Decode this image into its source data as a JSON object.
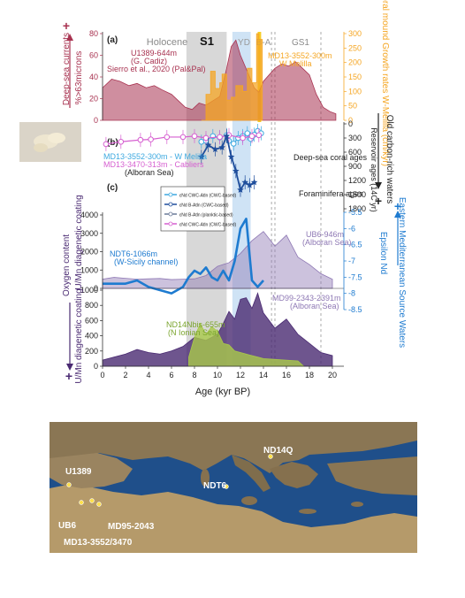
{
  "chart_data": {
    "type": "area",
    "x_axis": {
      "label": "Age (kyr BP)",
      "range": [
        0,
        21
      ],
      "ticks": [
        "0",
        "2",
        "4",
        "6",
        "8",
        "10",
        "12",
        "14",
        "16",
        "18",
        "20"
      ]
    },
    "periods": [
      {
        "name": "Holocene",
        "color": "#8a8a8a"
      },
      {
        "name": "S1",
        "color": "#111111"
      },
      {
        "name": "YD",
        "color": "#9a9a9a"
      },
      {
        "name": "B-A",
        "color": "#9a9a9a"
      },
      {
        "name": "GS1",
        "color": "#8a8a8a"
      }
    ],
    "shading": {
      "s1": {
        "from": 7.3,
        "to": 10.8,
        "color": "#d8d8d8"
      },
      "yd": {
        "from": 11.3,
        "to": 12.9,
        "color": "#cfe3f5"
      },
      "ba": {
        "from": 12.9,
        "to": 14.7,
        "color": "#ffffff"
      },
      "coral_band": {
        "from": 13.5,
        "to": 13.8,
        "color": "#f5c400"
      }
    },
    "dashed_lines": [
      14.7,
      15.0,
      19.0
    ],
    "panel_a": {
      "label": "(a)",
      "left_axis": {
        "label": "%>63microns",
        "range": [
          0,
          80
        ],
        "ticks": [
          "0",
          "20",
          "40",
          "60",
          "80"
        ],
        "side_label": "Deep-sea currents",
        "plus_sign": "+"
      },
      "right_axis": {
        "label": "Coral mound Growth rates W-Melilla (cm/kyr)",
        "range": [
          0,
          300
        ],
        "ticks": [
          "0",
          "50",
          "100",
          "150",
          "200",
          "250",
          "300"
        ]
      },
      "series": [
        {
          "name": "U1389-644m (G. Cadiz) Sierro et al., 2020 (Pal&Pal)",
          "color": "#a83250",
          "x": [
            0,
            0.8,
            1.5,
            2.3,
            3.0,
            3.8,
            4.5,
            5.2,
            6.0,
            6.6,
            7.2,
            7.8,
            8.4,
            9.0,
            9.6,
            10.2,
            10.8,
            11.2,
            11.6,
            12.0,
            12.4,
            12.8,
            13.2,
            13.6,
            14.0,
            14.5,
            15.0,
            15.6,
            16.2,
            16.8,
            17.4,
            18.0,
            18.6,
            19.2,
            19.8,
            20.3
          ],
          "y": [
            30,
            38,
            36,
            32,
            34,
            30,
            32,
            28,
            24,
            18,
            12,
            10,
            16,
            14,
            18,
            22,
            48,
            68,
            74,
            60,
            50,
            40,
            30,
            26,
            36,
            42,
            48,
            52,
            50,
            54,
            48,
            42,
            24,
            12,
            8,
            6
          ]
        },
        {
          "name": "MD13-3552-300m W Melilla",
          "color": "#f5a623",
          "x": [
            8.6,
            9.0,
            9.2,
            9.4,
            9.8,
            10.2,
            10.4,
            10.8,
            11.2,
            11.6,
            12.2,
            12.6,
            13.0,
            13.4,
            13.6,
            13.9
          ],
          "y": [
            0,
            90,
            90,
            170,
            110,
            130,
            160,
            70,
            80,
            120,
            100,
            180,
            130,
            300,
            280,
            0
          ]
        }
      ],
      "annotations": [
        "U1389-644m",
        "(G. Cadiz)",
        "Sierro et al., 2020 (Pal&Pal)",
        "MD13-3552-300m",
        "W Melilla"
      ]
    },
    "panel_b": {
      "label": "(b)",
      "right_axis": {
        "label": "Reservoir ages (14C yr)",
        "range": [
          0,
          1800
        ],
        "ticks": [
          "0",
          "300",
          "600",
          "900",
          "1200",
          "1500",
          "1800"
        ],
        "side_label": "Old carbon-rich waters",
        "plus_sign": "+"
      },
      "series": [
        {
          "name": "MD13-3552-300m - W Melilla",
          "color": "#3da9e0",
          "marker": "open-circle",
          "x": [
            8.6,
            9.0,
            9.6,
            10.2,
            10.8,
            11.0,
            11.4,
            11.8,
            12.2,
            12.6,
            12.9,
            13.2,
            13.5,
            13.8
          ],
          "y": [
            380,
            360,
            260,
            290,
            240,
            360,
            420,
            300,
            260,
            200,
            320,
            230,
            150,
            200
          ]
        },
        {
          "name": "MD13-3470-313m - Cabliers (Alboran Sea)",
          "color": "#d65fd0",
          "marker": "open-circle",
          "x": [
            0.3,
            1.6,
            3.3,
            4.2,
            5.6,
            7.0,
            8.0,
            9.0,
            10.2,
            11.0,
            12.2,
            13.0,
            13.6
          ],
          "y": [
            430,
            380,
            340,
            330,
            280,
            280,
            260,
            300,
            280,
            240,
            300,
            260,
            240
          ]
        },
        {
          "name": "Foraminifera ages",
          "color": "#1f4e9c",
          "marker": "star",
          "x": [
            8.6,
            9.2,
            9.8,
            10.4,
            10.8,
            11.2,
            11.6,
            12.0,
            12.4,
            12.8,
            13.2
          ],
          "y": [
            700,
            450,
            540,
            500,
            260,
            700,
            1000,
            1400,
            1240,
            1300,
            1240
          ]
        }
      ],
      "annotations": [
        "Deep-sea coral ages",
        "Foraminifera ages",
        "MD13-3552-300m - W Melilla",
        "MD13-3470-313m - Cabliers",
        "(Alboran Sea)"
      ]
    },
    "panel_c": {
      "label": "(c)",
      "left_axis_upper": {
        "label": "U/Mn diagenetic coating",
        "range": [
          0,
          4000
        ],
        "ticks": [
          "0",
          "1000",
          "2000",
          "3000",
          "4000"
        ]
      },
      "left_axis_lower": {
        "label": "U/Mn diagenetic coating",
        "range": [
          0,
          1000
        ],
        "ticks": [
          "0",
          "200",
          "400",
          "600",
          "800",
          "1000"
        ]
      },
      "side_label": "Oxygen content",
      "plus_sign": "+",
      "right_axis": {
        "label": "Epsilon Nd",
        "range": [
          -8.5,
          -5.5
        ],
        "ticks": [
          "-5.5",
          "-6",
          "-6.5",
          "-7",
          "-7.5",
          "-8",
          "-8.5"
        ],
        "side_label": "Eastern Mediterranean Source Waters",
        "plus_sign": "+"
      },
      "legend": [
        {
          "label": "εNd CWC-Atln (CWC-based)",
          "color": "#3da9e0"
        },
        {
          "label": "εNd B-Atln (CWC-based)",
          "color": "#1f4e9c"
        },
        {
          "label": "εNd B-Atln (planktic-based)",
          "color": "#6b7a99"
        },
        {
          "label": "εNd CWC-Atln (CWC-based)",
          "color": "#d65fd0"
        }
      ],
      "series": [
        {
          "name": "UB6-946m (Alboran Sea)",
          "color": "#8e78b4",
          "x": [
            0,
            1,
            2,
            3,
            4,
            5,
            6,
            7,
            8,
            9,
            10,
            11,
            12,
            13,
            14,
            15,
            16,
            17,
            18,
            19,
            20
          ],
          "y": [
            500,
            600,
            550,
            500,
            520,
            540,
            480,
            500,
            520,
            700,
            1200,
            1400,
            1900,
            2600,
            3100,
            2300,
            2900,
            1700,
            1300,
            800,
            500
          ]
        },
        {
          "name": "NDT6-1066m (W-Sicily channel)",
          "color": "#1e7bd0",
          "x": [
            0,
            1,
            2,
            3,
            4,
            5,
            6,
            7,
            7.5,
            8,
            8.5,
            9,
            9.5,
            10,
            10.5,
            11,
            11.5,
            12,
            12.5,
            13,
            13.5,
            14
          ],
          "y": [
            -7.7,
            -7.7,
            -7.7,
            -7.6,
            -7.8,
            -7.9,
            -8.0,
            -7.8,
            -7.5,
            -7.3,
            -7.4,
            -7.2,
            -7.5,
            -7.6,
            -7.3,
            -7.6,
            -7.0,
            -6.0,
            -5.7,
            -7.6,
            -7.8,
            -7.6
          ]
        },
        {
          "name": "MD99-2343-2391m (Alboran Sea)",
          "color": "#4a2a72",
          "x": [
            0,
            1,
            2,
            3,
            4,
            5,
            6,
            7,
            8,
            9,
            10,
            10.5,
            11,
            11.5,
            12,
            12.5,
            13,
            13.5,
            14,
            15,
            16,
            17,
            18,
            19,
            20
          ],
          "y": [
            80,
            120,
            160,
            220,
            180,
            160,
            200,
            260,
            380,
            340,
            420,
            560,
            720,
            620,
            880,
            900,
            760,
            960,
            700,
            500,
            620,
            420,
            300,
            180,
            140
          ]
        },
        {
          "name": "ND14Nbis-655m (N Ionian Sea)",
          "color": "#a9c94a",
          "x": [
            7.5,
            8,
            8.5,
            9,
            9.5,
            10,
            10.5,
            11,
            11.5,
            12,
            12.5,
            13,
            13.5,
            14,
            15,
            16,
            17,
            17.5
          ],
          "y": [
            120,
            380,
            560,
            420,
            520,
            460,
            300,
            280,
            200,
            180,
            160,
            140,
            120,
            100,
            90,
            80,
            70,
            0
          ]
        }
      ],
      "annotations": [
        "UB6-946m",
        "(Alboran Sea)",
        "NDT6-1066m",
        "(W-Sicily channel)",
        "MD99-2343-2391m",
        "(Alboran Sea)",
        "ND14Nbis-655m",
        "(N Ionian Sea)"
      ]
    },
    "map": {
      "labels": [
        "U1389",
        "UB6",
        "MD95-2043",
        "MD13-3552/3470",
        "NDT6",
        "ND14Q"
      ],
      "colors": {
        "sea": "#1f4f8a",
        "land": "#8a7654",
        "label": "#ffffff"
      }
    }
  }
}
